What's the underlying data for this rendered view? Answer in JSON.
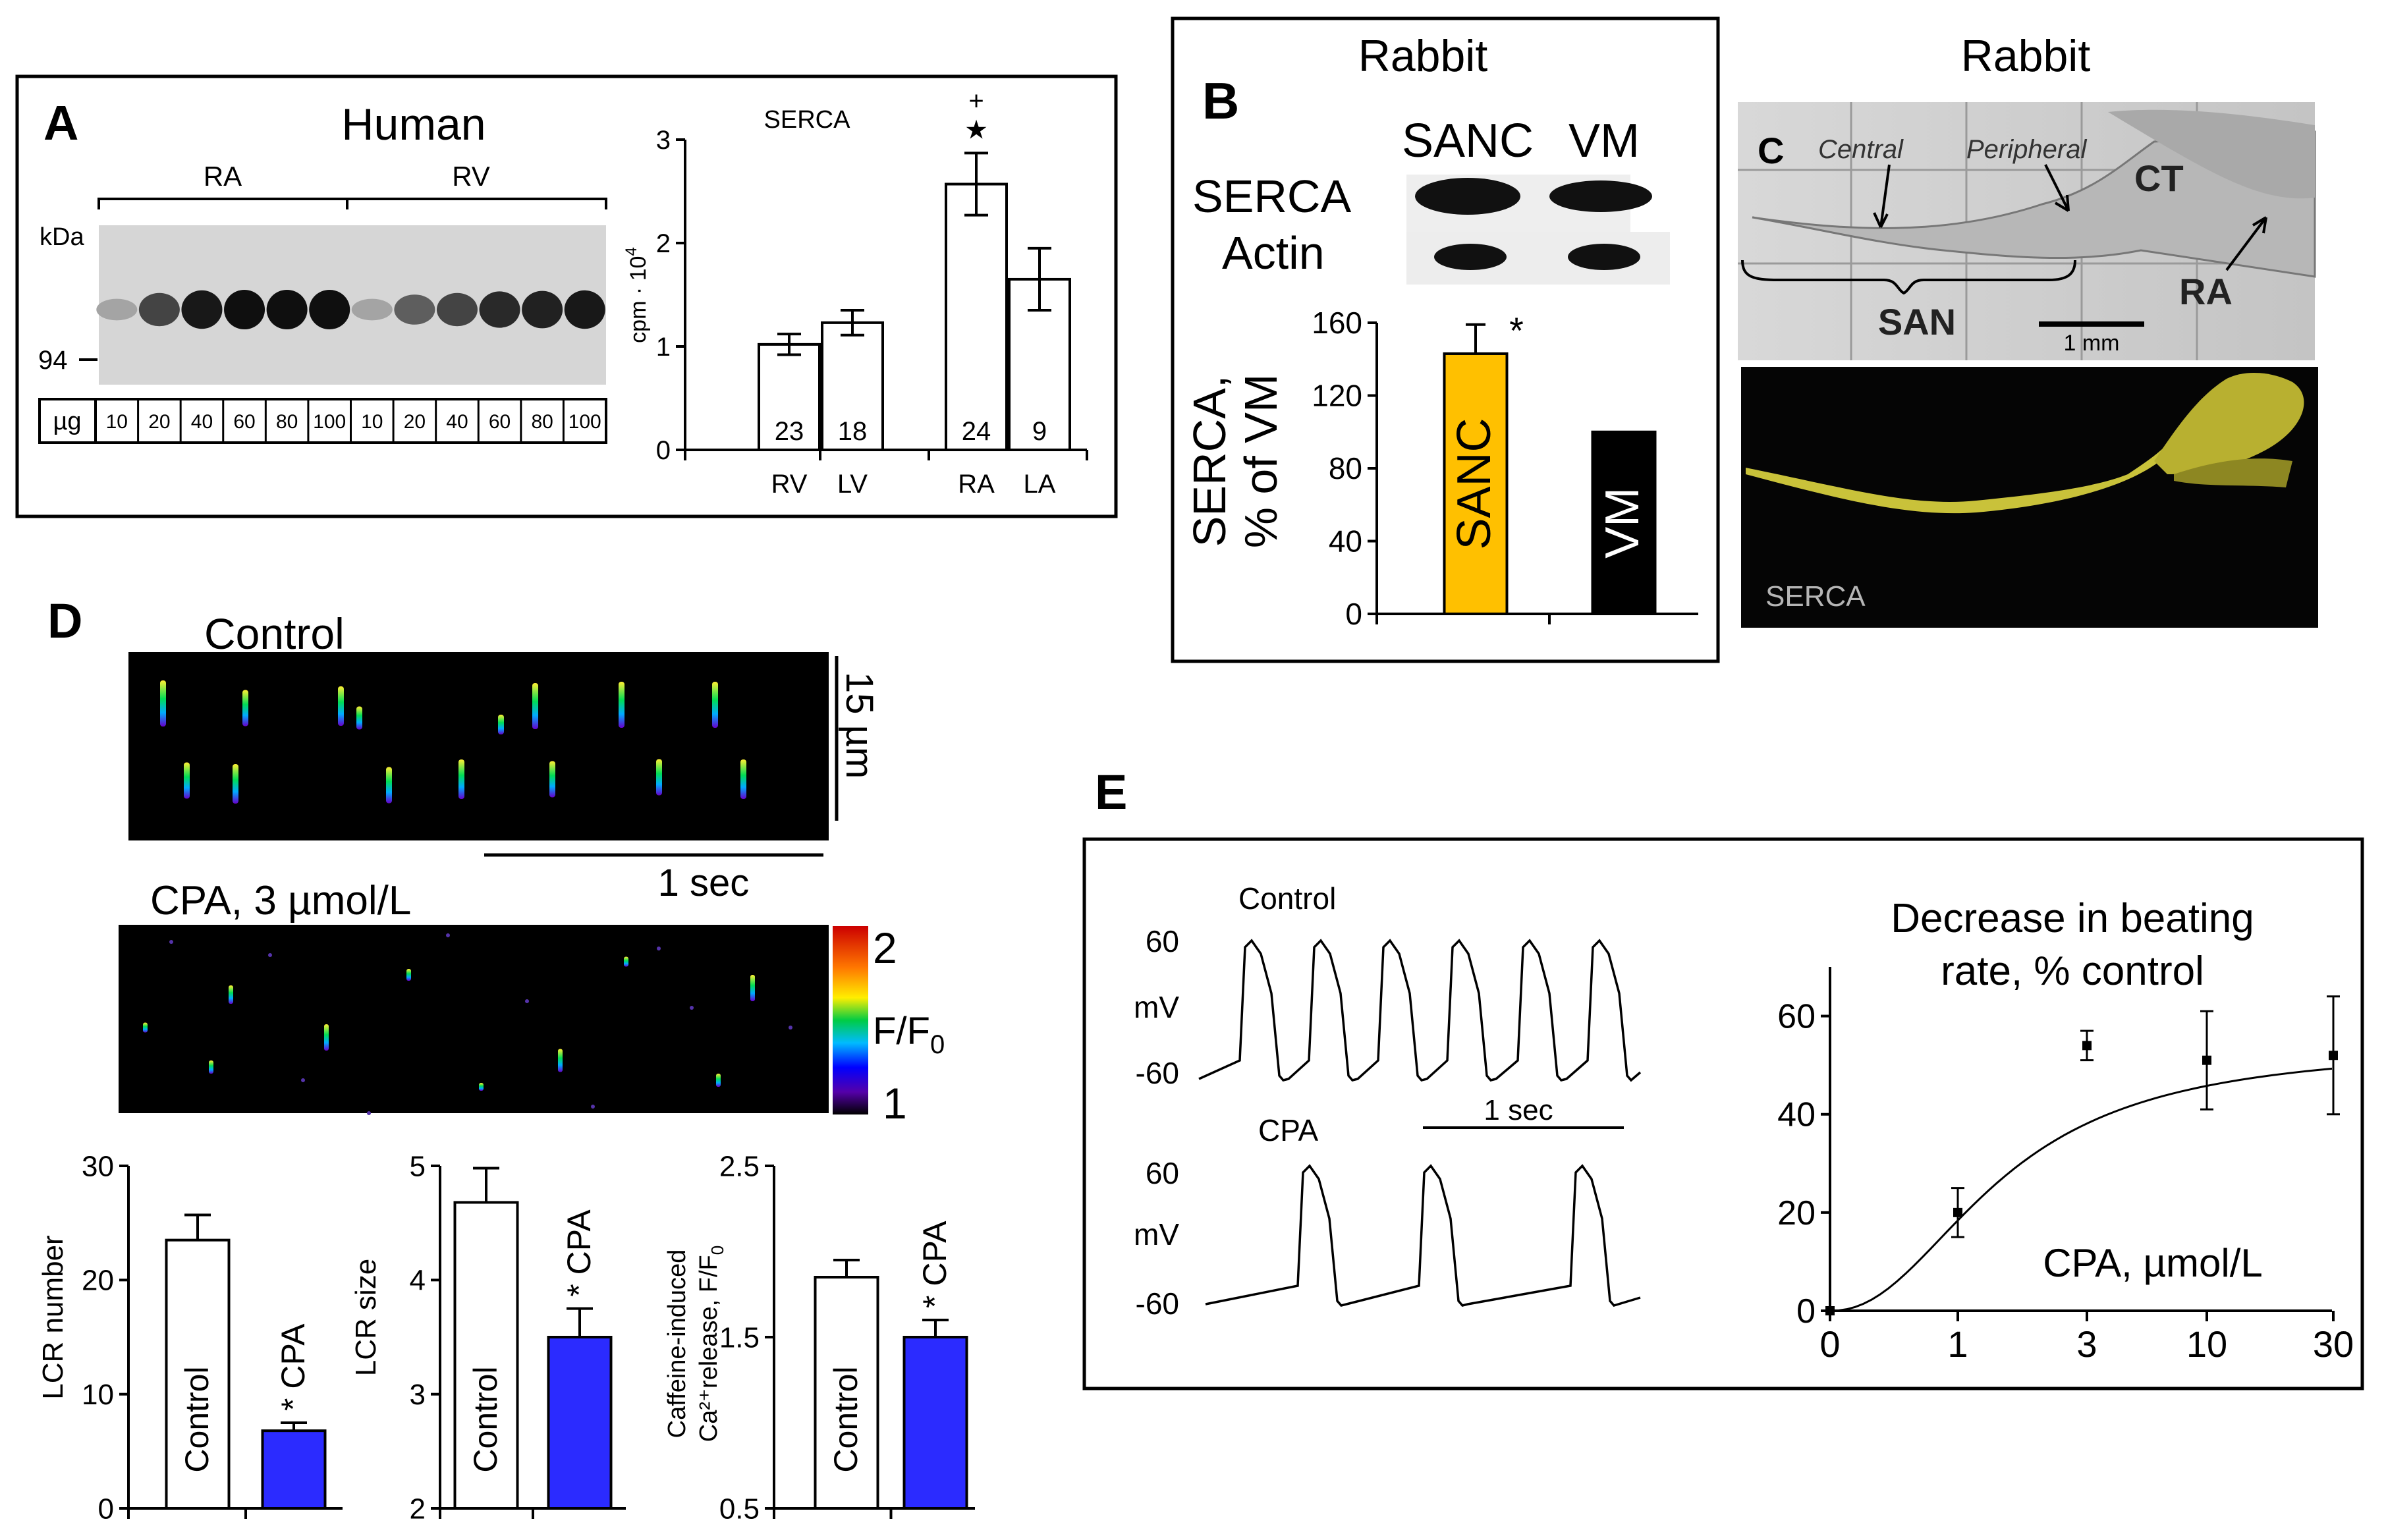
{
  "panels": {
    "A": {
      "letter": "A",
      "title": "Human",
      "group_ra": "RA",
      "group_rv": "RV",
      "kda_label": "kDa",
      "marker_label": "94",
      "ug_label": "µg",
      "amounts": [
        "10",
        "20",
        "40",
        "60",
        "80",
        "100",
        "10",
        "20",
        "40",
        "60",
        "80",
        "100"
      ],
      "band_intensity": [
        0.15,
        0.7,
        0.95,
        1.0,
        1.0,
        1.0,
        0.15,
        0.55,
        0.7,
        0.85,
        0.9,
        0.95
      ]
    },
    "B": {
      "letter": "B",
      "species": "Rabbit",
      "col_sanc": "SANC",
      "col_vm": "VM",
      "row_serca": "SERCA",
      "row_actin": "Actin",
      "ylabel_line1": "SERCA,",
      "ylabel_line2": "% of VM",
      "sig": "*"
    },
    "C": {
      "letter": "C",
      "species": "Rabbit",
      "central": "Central",
      "peripheral": "Peripheral",
      "ct": "CT",
      "san": "SAN",
      "ra": "RA",
      "scale": "1 mm",
      "stain": "SERCA"
    },
    "D": {
      "letter": "D",
      "control": "Control",
      "cpa": "CPA, 3 µmol/L",
      "space_scale": "15 µm",
      "time_scale": "1 sec",
      "cbar_max": "2",
      "cbar_min": "1",
      "cbar_label": "F/F",
      "cbar_sub": "0",
      "sig": "*"
    },
    "E": {
      "letter": "E",
      "control": "Control",
      "cpa": "CPA",
      "unit": "mV",
      "v_top": "60",
      "v_bot": "-60",
      "time_scale": "1 sec",
      "title_line1": "Decrease in beating",
      "title_line2": "rate, % control",
      "xlabel": "CPA, µmol/L"
    }
  },
  "chart_data": [
    {
      "id": "A_bar",
      "type": "bar",
      "title": "SERCA",
      "ylabel": "cpm · 10",
      "ylabel_sup": "4",
      "categories": [
        "RV",
        "LV",
        "RA",
        "LA"
      ],
      "values": [
        1.02,
        1.23,
        2.57,
        1.65
      ],
      "errors": [
        0.1,
        0.12,
        0.3,
        0.3
      ],
      "n": [
        "23",
        "18",
        "24",
        "9"
      ],
      "annotations": {
        "RA": [
          "+",
          "★"
        ]
      },
      "ylim": [
        0,
        3
      ],
      "yticks": [
        "0",
        "1",
        "2",
        "3"
      ]
    },
    {
      "id": "B_bar",
      "type": "bar",
      "categories": [
        "SANC",
        "VM"
      ],
      "values": [
        143,
        100
      ],
      "errors": [
        16,
        0
      ],
      "colors": [
        "#ffc000",
        "#000000"
      ],
      "ylim": [
        0,
        160
      ],
      "yticks": [
        "0",
        "40",
        "80",
        "120",
        "160"
      ]
    },
    {
      "id": "D_lcr_number",
      "type": "bar",
      "ylabel": "LCR number",
      "categories": [
        "Control",
        "CPA"
      ],
      "values": [
        23.5,
        6.8
      ],
      "errors": [
        2.2,
        0.7
      ],
      "colors": [
        "#ffffff",
        "#2b2bff"
      ],
      "ylim": [
        0,
        30
      ],
      "yticks": [
        "0",
        "10",
        "20",
        "30"
      ]
    },
    {
      "id": "D_lcr_size",
      "type": "bar",
      "ylabel": "LCR size",
      "categories": [
        "Control",
        "CPA"
      ],
      "values": [
        4.68,
        3.5
      ],
      "errors": [
        0.3,
        0.25
      ],
      "colors": [
        "#ffffff",
        "#2b2bff"
      ],
      "ylim": [
        2,
        5
      ],
      "yticks": [
        "2",
        "3",
        "4",
        "5"
      ]
    },
    {
      "id": "D_caffeine",
      "type": "bar",
      "ylabel_line1": "Caffeine-induced",
      "ylabel_line2": "Ca²⁺release, F/F",
      "ylabel_sub": "0",
      "categories": [
        "Control",
        "CPA"
      ],
      "values": [
        1.85,
        1.5
      ],
      "errors": [
        0.1,
        0.1
      ],
      "colors": [
        "#ffffff",
        "#2b2bff"
      ],
      "ylim": [
        0.5,
        2.5
      ],
      "yticks": [
        "0.5",
        "1.5",
        "2.5"
      ]
    },
    {
      "id": "E_dose",
      "type": "scatter",
      "x": [
        0,
        1,
        3,
        10,
        30
      ],
      "x_ticks": [
        "0",
        "1",
        "3",
        "10",
        "30"
      ],
      "values": [
        0,
        20,
        54,
        51,
        52
      ],
      "errors": [
        0,
        5,
        3,
        10,
        12
      ],
      "ylim": [
        0,
        70
      ],
      "yticks": [
        "0",
        "20",
        "40",
        "60"
      ]
    }
  ]
}
